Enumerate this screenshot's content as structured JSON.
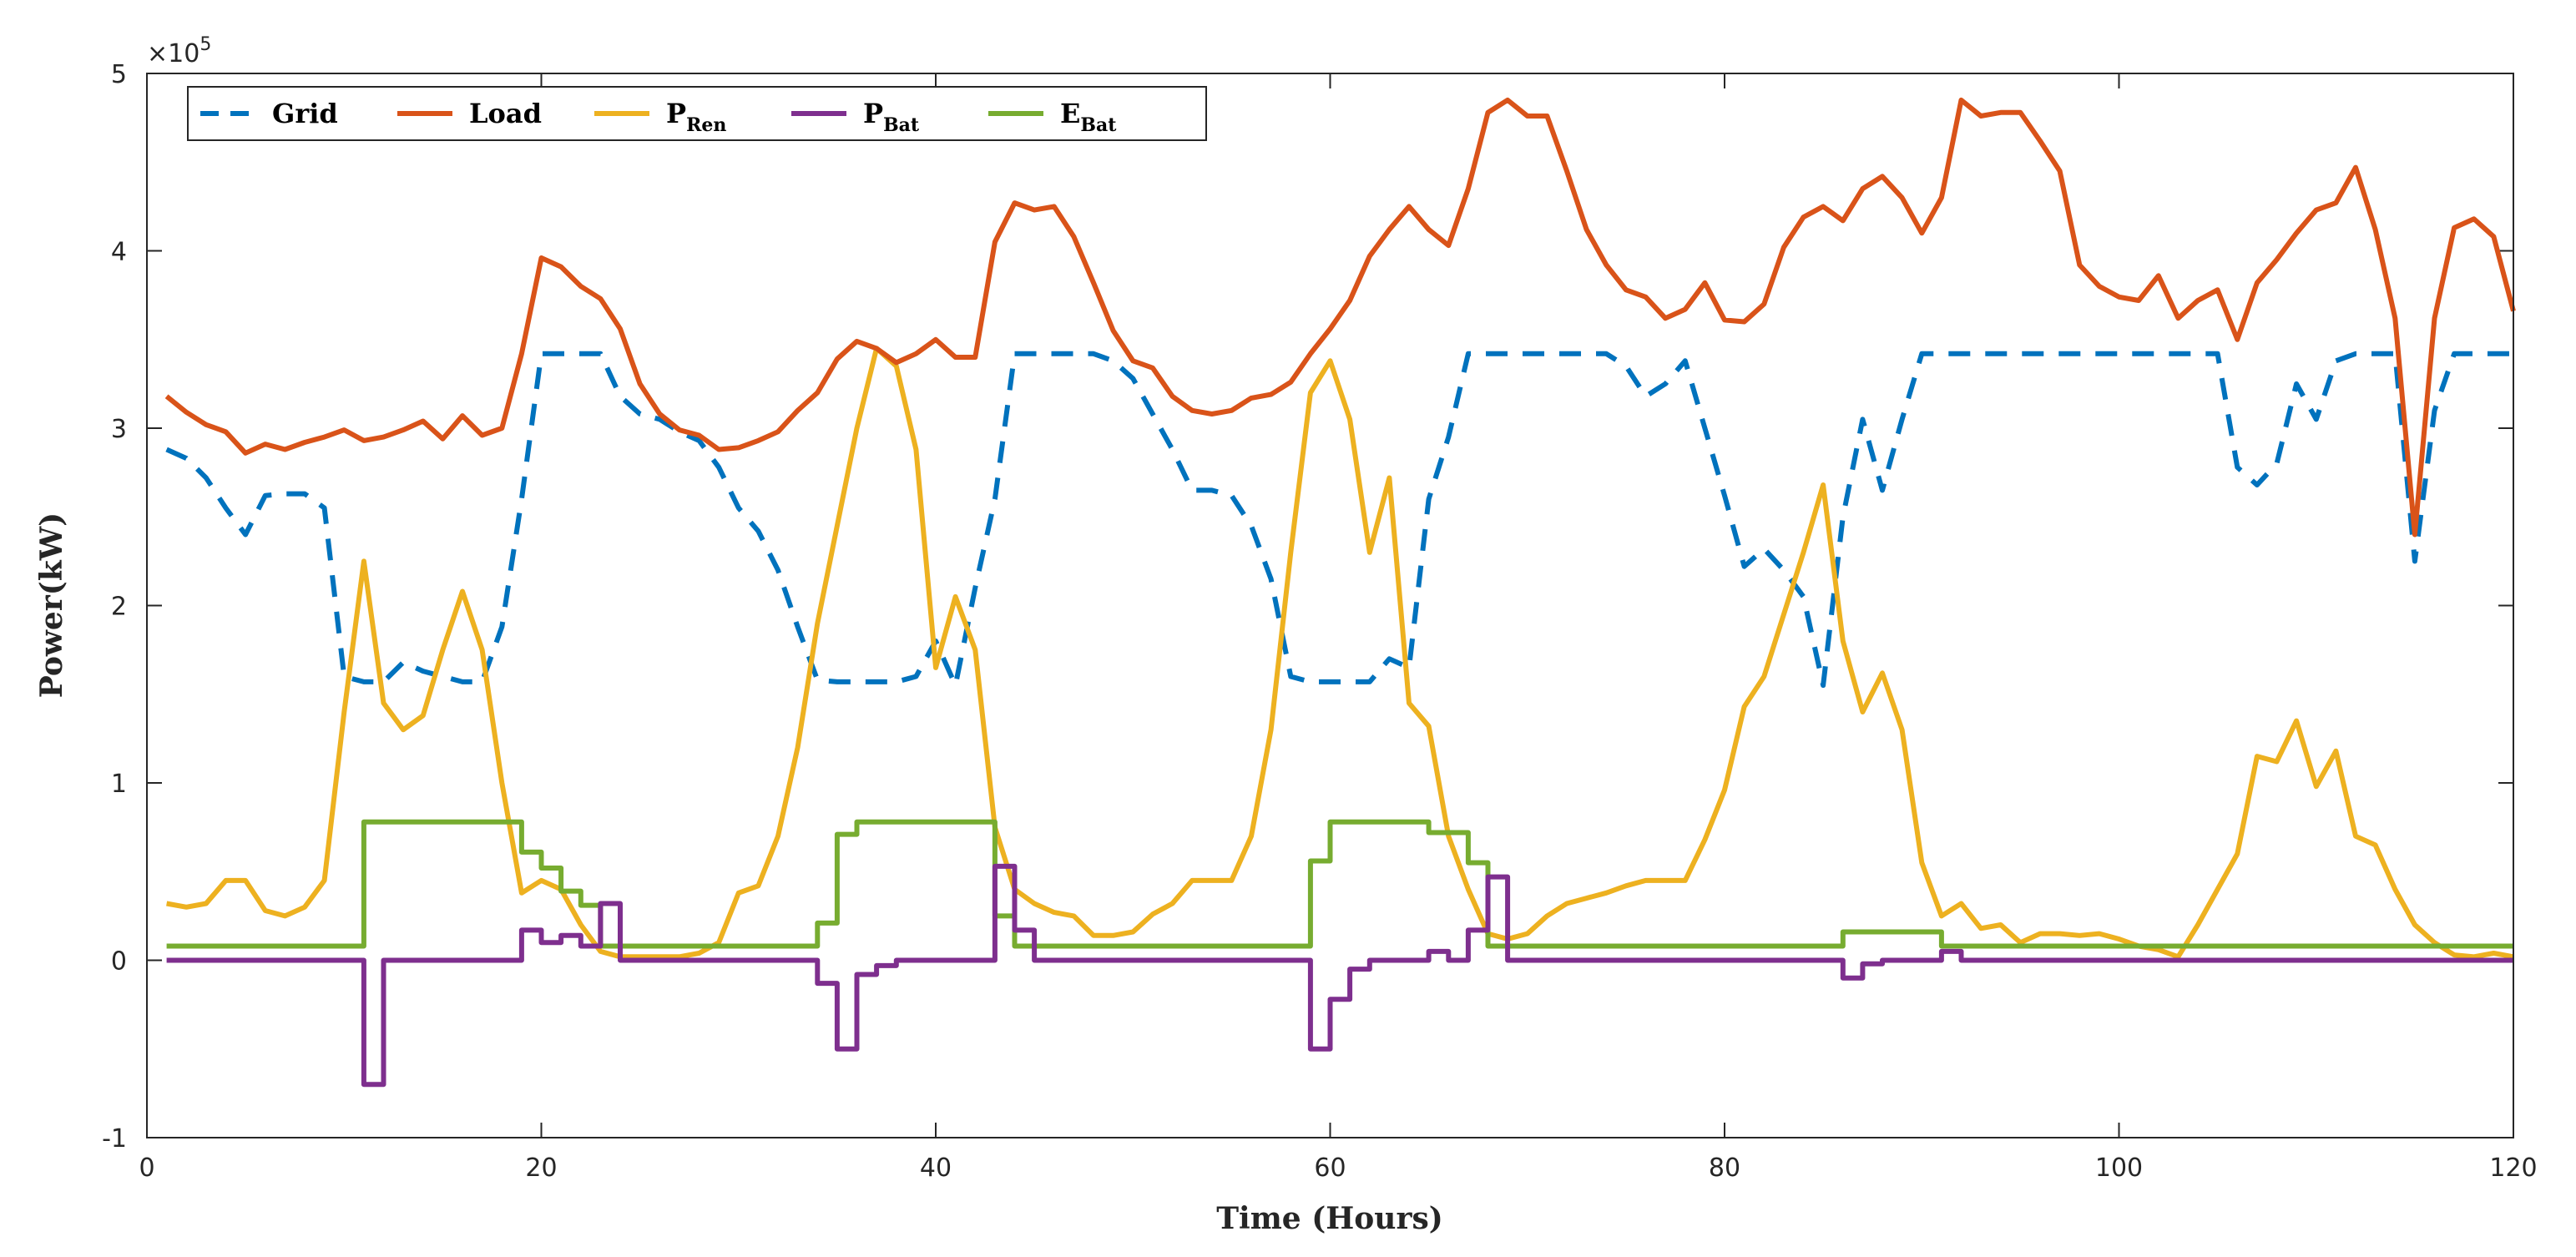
{
  "chart_data": {
    "type": "line",
    "title": "",
    "xlabel": "Time (Hours)",
    "ylabel": "Power(kW)",
    "y_exponent_label": "×10",
    "y_exponent_power": "5",
    "xlim": [
      0,
      120
    ],
    "ylim": [
      -1,
      5
    ],
    "xticks": [
      0,
      20,
      40,
      60,
      80,
      100,
      120
    ],
    "yticks": [
      -1,
      0,
      1,
      2,
      3,
      4,
      5
    ],
    "legend_position": "top-left",
    "series": [
      {
        "name": "Grid",
        "legend_main": "Grid",
        "legend_sub": "",
        "color": "#0072BD",
        "style": "dashed",
        "step": false,
        "x": [
          1,
          2,
          3,
          4,
          5,
          6,
          7,
          8,
          9,
          10,
          11,
          12,
          13,
          14,
          15,
          16,
          17,
          18,
          19,
          20,
          21,
          22,
          23,
          24,
          25,
          26,
          27,
          28,
          29,
          30,
          31,
          32,
          33,
          34,
          35,
          36,
          37,
          38,
          39,
          40,
          41,
          42,
          43,
          44,
          45,
          46,
          47,
          48,
          49,
          50,
          51,
          52,
          53,
          54,
          55,
          56,
          57,
          58,
          59,
          60,
          61,
          62,
          63,
          64,
          65,
          66,
          67,
          68,
          69,
          70,
          71,
          72,
          73,
          74,
          75,
          76,
          77,
          78,
          79,
          80,
          81,
          82,
          83,
          84,
          85,
          86,
          87,
          88,
          89,
          90,
          91,
          92,
          93,
          94,
          95,
          96,
          97,
          98,
          99,
          100,
          101,
          102,
          103,
          104,
          105,
          106,
          107,
          108,
          109,
          110,
          111,
          112,
          113,
          114,
          115,
          116,
          117,
          118,
          119,
          120
        ],
        "y": [
          2.88,
          2.83,
          2.72,
          2.55,
          2.4,
          2.62,
          2.63,
          2.63,
          2.55,
          1.6,
          1.57,
          1.57,
          1.68,
          1.63,
          1.6,
          1.57,
          1.57,
          1.88,
          2.6,
          3.42,
          3.42,
          3.42,
          3.42,
          3.18,
          3.08,
          3.05,
          2.98,
          2.93,
          2.78,
          2.55,
          2.42,
          2.2,
          1.88,
          1.58,
          1.57,
          1.57,
          1.57,
          1.57,
          1.6,
          1.8,
          1.55,
          2.1,
          2.6,
          3.42,
          3.42,
          3.42,
          3.42,
          3.42,
          3.38,
          3.28,
          3.08,
          2.88,
          2.65,
          2.65,
          2.62,
          2.45,
          2.15,
          1.6,
          1.57,
          1.57,
          1.57,
          1.57,
          1.7,
          1.65,
          2.6,
          2.95,
          3.42,
          3.42,
          3.42,
          3.42,
          3.42,
          3.42,
          3.42,
          3.42,
          3.35,
          3.18,
          3.25,
          3.38,
          3.0,
          2.62,
          2.22,
          2.32,
          2.2,
          2.05,
          1.55,
          2.5,
          3.05,
          2.65,
          3.05,
          3.42,
          3.42,
          3.42,
          3.42,
          3.42,
          3.42,
          3.42,
          3.42,
          3.42,
          3.42,
          3.42,
          3.42,
          3.42,
          3.42,
          3.42,
          3.42,
          2.78,
          2.68,
          2.8,
          3.25,
          3.05,
          3.38,
          3.42,
          3.42,
          3.42,
          2.25,
          3.1,
          3.42,
          3.42,
          3.42,
          3.42
        ]
      },
      {
        "name": "Load",
        "legend_main": "Load",
        "legend_sub": "",
        "color": "#D95319",
        "style": "solid",
        "step": false,
        "x": [
          1,
          2,
          3,
          4,
          5,
          6,
          7,
          8,
          9,
          10,
          11,
          12,
          13,
          14,
          15,
          16,
          17,
          18,
          19,
          20,
          21,
          22,
          23,
          24,
          25,
          26,
          27,
          28,
          29,
          30,
          31,
          32,
          33,
          34,
          35,
          36,
          37,
          38,
          39,
          40,
          41,
          42,
          43,
          44,
          45,
          46,
          47,
          48,
          49,
          50,
          51,
          52,
          53,
          54,
          55,
          56,
          57,
          58,
          59,
          60,
          61,
          62,
          63,
          64,
          65,
          66,
          67,
          68,
          69,
          70,
          71,
          72,
          73,
          74,
          75,
          76,
          77,
          78,
          79,
          80,
          81,
          82,
          83,
          84,
          85,
          86,
          87,
          88,
          89,
          90,
          91,
          92,
          93,
          94,
          95,
          96,
          97,
          98,
          99,
          100,
          101,
          102,
          103,
          104,
          105,
          106,
          107,
          108,
          109,
          110,
          111,
          112,
          113,
          114,
          115,
          116,
          117,
          118,
          119,
          120
        ],
        "y": [
          3.18,
          3.09,
          3.02,
          2.98,
          2.86,
          2.91,
          2.88,
          2.92,
          2.95,
          2.99,
          2.93,
          2.95,
          2.99,
          3.04,
          2.94,
          3.07,
          2.96,
          3.0,
          3.42,
          3.96,
          3.91,
          3.8,
          3.73,
          3.56,
          3.25,
          3.08,
          2.99,
          2.96,
          2.88,
          2.89,
          2.93,
          2.98,
          3.1,
          3.2,
          3.39,
          3.49,
          3.45,
          3.37,
          3.42,
          3.5,
          3.4,
          3.4,
          4.05,
          4.27,
          4.23,
          4.25,
          4.08,
          3.82,
          3.55,
          3.38,
          3.34,
          3.18,
          3.1,
          3.08,
          3.1,
          3.17,
          3.19,
          3.26,
          3.42,
          3.56,
          3.72,
          3.97,
          4.12,
          4.25,
          4.12,
          4.03,
          4.35,
          4.78,
          4.85,
          4.76,
          4.76,
          4.45,
          4.12,
          3.92,
          3.78,
          3.74,
          3.62,
          3.67,
          3.82,
          3.61,
          3.6,
          3.7,
          4.02,
          4.19,
          4.25,
          4.17,
          4.35,
          4.42,
          4.3,
          4.1,
          4.3,
          4.85,
          4.76,
          4.78,
          4.78,
          4.62,
          4.45,
          3.92,
          3.8,
          3.74,
          3.72,
          3.86,
          3.62,
          3.72,
          3.78,
          3.5,
          3.82,
          3.95,
          4.1,
          4.23,
          4.27,
          4.47,
          4.12,
          3.62,
          2.4,
          3.62,
          4.13,
          4.18,
          4.08,
          3.66
        ]
      },
      {
        "name": "P_Ren",
        "legend_main": "P",
        "legend_sub": "Ren",
        "color": "#EDB120",
        "style": "solid",
        "step": false,
        "x": [
          1,
          2,
          3,
          4,
          5,
          6,
          7,
          8,
          9,
          10,
          11,
          12,
          13,
          14,
          15,
          16,
          17,
          18,
          19,
          20,
          21,
          22,
          23,
          24,
          25,
          26,
          27,
          28,
          29,
          30,
          31,
          32,
          33,
          34,
          35,
          36,
          37,
          38,
          39,
          40,
          41,
          42,
          43,
          44,
          45,
          46,
          47,
          48,
          49,
          50,
          51,
          52,
          53,
          54,
          55,
          56,
          57,
          58,
          59,
          60,
          61,
          62,
          63,
          64,
          65,
          66,
          67,
          68,
          69,
          70,
          71,
          72,
          73,
          74,
          75,
          76,
          77,
          78,
          79,
          80,
          81,
          82,
          83,
          84,
          85,
          86,
          87,
          88,
          89,
          90,
          91,
          92,
          93,
          94,
          95,
          96,
          97,
          98,
          99,
          100,
          101,
          102,
          103,
          104,
          105,
          106,
          107,
          108,
          109,
          110,
          111,
          112,
          113,
          114,
          115,
          116,
          117,
          118,
          119,
          120
        ],
        "y": [
          0.32,
          0.3,
          0.32,
          0.45,
          0.45,
          0.28,
          0.25,
          0.3,
          0.45,
          1.4,
          2.25,
          1.45,
          1.3,
          1.38,
          1.75,
          2.08,
          1.75,
          1.0,
          0.38,
          0.45,
          0.4,
          0.2,
          0.05,
          0.02,
          0.02,
          0.02,
          0.02,
          0.04,
          0.1,
          0.38,
          0.42,
          0.7,
          1.2,
          1.9,
          2.45,
          3.0,
          3.45,
          3.35,
          2.88,
          1.65,
          2.05,
          1.75,
          0.75,
          0.4,
          0.32,
          0.27,
          0.25,
          0.14,
          0.14,
          0.16,
          0.26,
          0.32,
          0.45,
          0.45,
          0.45,
          0.7,
          1.3,
          2.3,
          3.2,
          3.38,
          3.05,
          2.3,
          2.72,
          1.45,
          1.32,
          0.7,
          0.4,
          0.15,
          0.12,
          0.15,
          0.25,
          0.32,
          0.35,
          0.38,
          0.42,
          0.45,
          0.45,
          0.45,
          0.68,
          0.96,
          1.43,
          1.6,
          1.95,
          2.3,
          2.68,
          1.8,
          1.4,
          1.62,
          1.3,
          0.55,
          0.25,
          0.32,
          0.18,
          0.2,
          0.1,
          0.15,
          0.15,
          0.14,
          0.15,
          0.12,
          0.08,
          0.06,
          0.02,
          0.2,
          0.4,
          0.6,
          1.15,
          1.12,
          1.35,
          0.98,
          1.18,
          0.7,
          0.65,
          0.4,
          0.2,
          0.1,
          0.03,
          0.02,
          0.04,
          0.02
        ]
      },
      {
        "name": "P_Bat",
        "legend_main": "P",
        "legend_sub": "Bat",
        "color": "#7E2F8E",
        "style": "solid",
        "step": true,
        "x": [
          1,
          2,
          3,
          4,
          5,
          6,
          7,
          8,
          9,
          10,
          11,
          12,
          13,
          14,
          15,
          16,
          17,
          18,
          19,
          20,
          21,
          22,
          23,
          24,
          25,
          26,
          27,
          28,
          29,
          30,
          31,
          32,
          33,
          34,
          35,
          36,
          37,
          38,
          39,
          40,
          41,
          42,
          43,
          44,
          45,
          46,
          47,
          48,
          49,
          50,
          51,
          52,
          53,
          54,
          55,
          56,
          57,
          58,
          59,
          60,
          61,
          62,
          63,
          64,
          65,
          66,
          67,
          68,
          69,
          70,
          71,
          72,
          73,
          74,
          75,
          76,
          77,
          78,
          79,
          80,
          81,
          82,
          83,
          84,
          85,
          86,
          87,
          88,
          89,
          90,
          91,
          92,
          93,
          94,
          95,
          96,
          97,
          98,
          99,
          100,
          101,
          102,
          103,
          104,
          105,
          106,
          107,
          108,
          109,
          110,
          111,
          112,
          113,
          114,
          115,
          116,
          117,
          118,
          119,
          120
        ],
        "y": [
          0,
          0,
          0,
          0,
          0,
          0,
          0,
          0,
          0,
          0,
          -0.7,
          0,
          0,
          0,
          0,
          0,
          0,
          0,
          0.17,
          0.1,
          0.14,
          0.08,
          0.32,
          0,
          0,
          0,
          0,
          0,
          0,
          0,
          0,
          0,
          0,
          -0.13,
          -0.5,
          -0.08,
          -0.03,
          0,
          0,
          0,
          0,
          0,
          0.53,
          0.17,
          0,
          0,
          0,
          0,
          0,
          0,
          0,
          0,
          0,
          0,
          0,
          0,
          0,
          0,
          -0.5,
          -0.22,
          -0.05,
          0,
          0,
          0,
          0.05,
          0,
          0.17,
          0.47,
          0,
          0,
          0,
          0,
          0,
          0,
          0,
          0,
          0,
          0,
          0,
          0,
          0,
          0,
          0,
          0,
          0,
          -0.1,
          -0.02,
          0,
          0,
          0,
          0.05,
          0,
          0,
          0,
          0,
          0,
          0,
          0,
          0,
          0,
          0,
          0,
          0,
          0,
          0,
          0,
          0,
          0,
          0,
          0,
          0,
          0,
          0,
          0,
          0,
          0,
          0,
          0,
          0,
          0
        ]
      },
      {
        "name": "E_Bat",
        "legend_main": "E",
        "legend_sub": "Bat",
        "color": "#77AC30",
        "style": "solid",
        "step": true,
        "x": [
          1,
          2,
          3,
          4,
          5,
          6,
          7,
          8,
          9,
          10,
          11,
          12,
          13,
          14,
          15,
          16,
          17,
          18,
          19,
          20,
          21,
          22,
          23,
          24,
          25,
          26,
          27,
          28,
          29,
          30,
          31,
          32,
          33,
          34,
          35,
          36,
          37,
          38,
          39,
          40,
          41,
          42,
          43,
          44,
          45,
          46,
          47,
          48,
          49,
          50,
          51,
          52,
          53,
          54,
          55,
          56,
          57,
          58,
          59,
          60,
          61,
          62,
          63,
          64,
          65,
          66,
          67,
          68,
          69,
          70,
          71,
          72,
          73,
          74,
          75,
          76,
          77,
          78,
          79,
          80,
          81,
          82,
          83,
          84,
          85,
          86,
          87,
          88,
          89,
          90,
          91,
          92,
          93,
          94,
          95,
          96,
          97,
          98,
          99,
          100,
          101,
          102,
          103,
          104,
          105,
          106,
          107,
          108,
          109,
          110,
          111,
          112,
          113,
          114,
          115,
          116,
          117,
          118,
          119,
          120
        ],
        "y": [
          0.08,
          0.08,
          0.08,
          0.08,
          0.08,
          0.08,
          0.08,
          0.08,
          0.08,
          0.08,
          0.78,
          0.78,
          0.78,
          0.78,
          0.78,
          0.78,
          0.78,
          0.78,
          0.61,
          0.52,
          0.39,
          0.31,
          0.08,
          0.08,
          0.08,
          0.08,
          0.08,
          0.08,
          0.08,
          0.08,
          0.08,
          0.08,
          0.08,
          0.21,
          0.71,
          0.78,
          0.78,
          0.78,
          0.78,
          0.78,
          0.78,
          0.78,
          0.25,
          0.08,
          0.08,
          0.08,
          0.08,
          0.08,
          0.08,
          0.08,
          0.08,
          0.08,
          0.08,
          0.08,
          0.08,
          0.08,
          0.08,
          0.08,
          0.56,
          0.78,
          0.78,
          0.78,
          0.78,
          0.78,
          0.72,
          0.72,
          0.55,
          0.08,
          0.08,
          0.08,
          0.08,
          0.08,
          0.08,
          0.08,
          0.08,
          0.08,
          0.08,
          0.08,
          0.08,
          0.08,
          0.08,
          0.08,
          0.08,
          0.08,
          0.08,
          0.16,
          0.16,
          0.16,
          0.16,
          0.16,
          0.08,
          0.08,
          0.08,
          0.08,
          0.08,
          0.08,
          0.08,
          0.08,
          0.08,
          0.08,
          0.08,
          0.08,
          0.08,
          0.08,
          0.08,
          0.08,
          0.08,
          0.08,
          0.08,
          0.08,
          0.08,
          0.08,
          0.08,
          0.08,
          0.08,
          0.08,
          0.08,
          0.08,
          0.08,
          0.08
        ]
      }
    ]
  }
}
